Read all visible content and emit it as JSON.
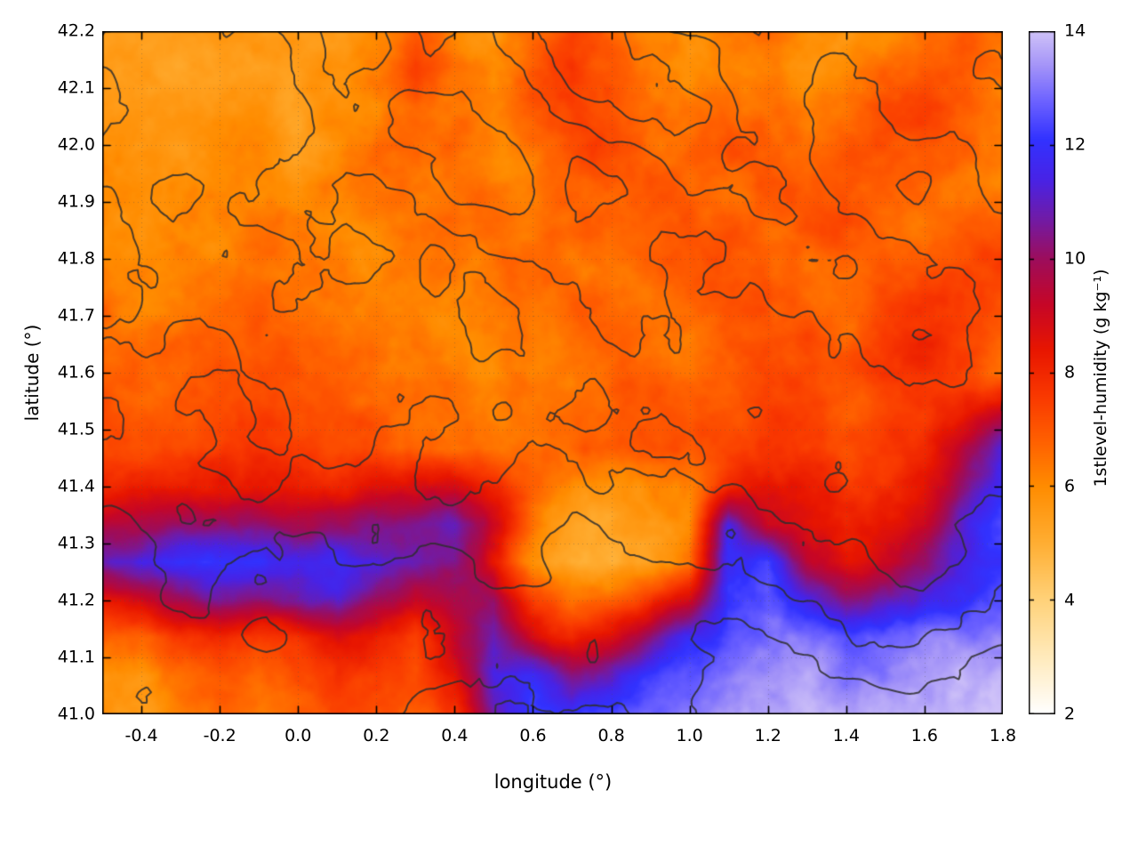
{
  "chart_data": {
    "type": "heatmap",
    "title": "",
    "xlabel": "longitude (°)",
    "ylabel": "latitude (°)",
    "colorbar_label": "1stlevel-humidity (g kg⁻¹)",
    "xlim": [
      -0.5,
      1.8
    ],
    "ylim": [
      41.0,
      42.2
    ],
    "clim": [
      2,
      14
    ],
    "grid": true,
    "xtick_values": [
      -0.4,
      -0.2,
      0.0,
      0.2,
      0.4,
      0.6,
      0.8,
      1.0,
      1.2,
      1.4,
      1.6,
      1.8
    ],
    "xtick_labels": [
      "-0.4",
      "-0.2",
      "0.0",
      "0.2",
      "0.4",
      "0.6",
      "0.8",
      "1.0",
      "1.2",
      "1.4",
      "1.6",
      "1.8"
    ],
    "ytick_values": [
      41.0,
      41.1,
      41.2,
      41.3,
      41.4,
      41.5,
      41.6,
      41.7,
      41.8,
      41.9,
      42.0,
      42.1,
      42.2
    ],
    "ytick_labels": [
      "41.0",
      "41.1",
      "41.2",
      "41.3",
      "41.4",
      "41.5",
      "41.6",
      "41.7",
      "41.8",
      "41.9",
      "42.0",
      "42.1",
      "42.2"
    ],
    "cbtick_values": [
      2,
      4,
      6,
      8,
      10,
      12,
      14
    ],
    "cbtick_labels": [
      "2",
      "4",
      "6",
      "8",
      "10",
      "12",
      "14"
    ],
    "colormap": [
      {
        "v": 2.0,
        "c": "#ffffff"
      },
      {
        "v": 3.0,
        "c": "#ffeabc"
      },
      {
        "v": 4.0,
        "c": "#ffd27a"
      },
      {
        "v": 5.0,
        "c": "#ffae33"
      },
      {
        "v": 6.0,
        "c": "#ff8c00"
      },
      {
        "v": 6.8,
        "c": "#ff6000"
      },
      {
        "v": 7.6,
        "c": "#f93800"
      },
      {
        "v": 8.4,
        "c": "#e81600"
      },
      {
        "v": 9.2,
        "c": "#c60627"
      },
      {
        "v": 10.0,
        "c": "#9d0d5c"
      },
      {
        "v": 10.7,
        "c": "#711ba6"
      },
      {
        "v": 11.4,
        "c": "#4823e6"
      },
      {
        "v": 12.1,
        "c": "#3232ff"
      },
      {
        "v": 12.8,
        "c": "#6f64ff"
      },
      {
        "v": 13.4,
        "c": "#a494f8"
      },
      {
        "v": 14.0,
        "c": "#cfc2f8"
      }
    ],
    "humidity_field": {
      "units": "g kg⁻¹",
      "lon": [
        -0.5,
        -0.4,
        -0.3,
        -0.2,
        -0.1,
        0.0,
        0.1,
        0.2,
        0.3,
        0.4,
        0.5,
        0.6,
        0.7,
        0.8,
        0.9,
        1.0,
        1.1,
        1.2,
        1.3,
        1.4,
        1.5,
        1.6,
        1.7,
        1.8
      ],
      "lat_top_to_bottom": [
        42.2,
        42.133,
        42.067,
        42.0,
        41.933,
        41.867,
        41.8,
        41.733,
        41.667,
        41.6,
        41.533,
        41.467,
        41.4,
        41.333,
        41.267,
        41.2,
        41.133,
        41.067,
        41.0
      ],
      "values": [
        [
          5.6,
          5.4,
          5.3,
          5.5,
          5.4,
          5.6,
          5.8,
          6.2,
          7.0,
          6.0,
          5.6,
          6.6,
          7.2,
          6.6,
          6.0,
          5.8,
          6.2,
          6.6,
          6.0,
          5.6,
          5.8,
          6.4,
          6.8,
          6.4
        ],
        [
          5.5,
          5.4,
          5.5,
          5.6,
          5.5,
          5.7,
          5.6,
          6.0,
          7.4,
          6.2,
          5.8,
          6.8,
          7.6,
          7.0,
          6.4,
          6.0,
          6.4,
          6.2,
          5.8,
          6.0,
          6.6,
          7.0,
          7.2,
          6.6
        ],
        [
          5.6,
          5.5,
          5.6,
          5.8,
          5.6,
          5.5,
          5.8,
          6.2,
          6.8,
          6.4,
          6.0,
          7.0,
          7.6,
          7.2,
          6.6,
          6.4,
          6.8,
          6.4,
          6.2,
          6.4,
          7.0,
          7.4,
          7.0,
          6.2
        ],
        [
          5.8,
          5.6,
          5.7,
          5.9,
          5.8,
          5.6,
          6.0,
          6.4,
          6.6,
          6.8,
          6.2,
          6.6,
          7.2,
          7.4,
          6.8,
          6.6,
          7.0,
          6.8,
          6.6,
          6.8,
          7.2,
          7.0,
          6.6,
          6.0
        ],
        [
          5.9,
          5.8,
          5.8,
          6.0,
          6.2,
          5.9,
          6.1,
          6.3,
          6.5,
          6.6,
          6.4,
          6.2,
          6.8,
          7.0,
          7.2,
          6.8,
          6.6,
          7.0,
          6.8,
          7.0,
          6.8,
          6.6,
          6.4,
          6.2
        ],
        [
          6.0,
          5.9,
          6.0,
          6.2,
          6.4,
          6.2,
          6.0,
          6.2,
          6.4,
          6.6,
          6.8,
          6.4,
          6.6,
          6.8,
          7.0,
          7.2,
          6.8,
          6.6,
          7.0,
          7.2,
          6.6,
          6.4,
          6.6,
          7.0
        ],
        [
          6.2,
          6.0,
          6.1,
          6.3,
          6.6,
          6.4,
          6.2,
          6.0,
          6.2,
          6.4,
          6.6,
          6.8,
          6.4,
          6.6,
          6.8,
          7.0,
          7.2,
          6.8,
          6.6,
          6.8,
          7.0,
          6.8,
          7.2,
          7.8
        ],
        [
          6.4,
          6.2,
          6.3,
          6.5,
          6.8,
          6.6,
          6.4,
          6.2,
          6.0,
          6.2,
          6.4,
          6.6,
          6.8,
          6.6,
          6.4,
          6.8,
          7.0,
          7.2,
          6.8,
          6.6,
          7.2,
          7.6,
          7.8,
          7.2
        ],
        [
          6.6,
          6.4,
          6.5,
          6.7,
          7.0,
          6.8,
          6.6,
          6.4,
          6.2,
          6.0,
          6.2,
          6.4,
          6.6,
          6.8,
          6.6,
          6.4,
          6.8,
          7.0,
          7.2,
          6.8,
          7.4,
          7.8,
          7.4,
          6.8
        ],
        [
          6.8,
          6.6,
          6.7,
          7.0,
          7.2,
          7.0,
          6.8,
          6.6,
          6.4,
          6.2,
          6.0,
          6.2,
          6.4,
          6.6,
          6.8,
          6.6,
          6.8,
          7.2,
          7.0,
          7.2,
          7.6,
          7.8,
          7.2,
          6.6
        ],
        [
          7.0,
          6.8,
          7.0,
          7.2,
          7.4,
          7.2,
          7.0,
          6.8,
          6.6,
          6.4,
          6.2,
          6.4,
          6.6,
          6.8,
          7.0,
          6.8,
          7.0,
          7.4,
          7.2,
          7.0,
          7.4,
          7.6,
          8.2,
          9.2
        ],
        [
          7.2,
          7.0,
          7.2,
          7.4,
          7.6,
          7.4,
          7.2,
          7.0,
          6.8,
          6.6,
          6.4,
          6.6,
          6.8,
          7.0,
          7.2,
          7.0,
          7.2,
          7.6,
          7.4,
          7.2,
          7.6,
          8.0,
          9.6,
          11.2
        ],
        [
          8.0,
          8.2,
          8.0,
          8.2,
          8.4,
          8.2,
          8.0,
          8.4,
          8.6,
          8.8,
          8.0,
          6.8,
          6.0,
          5.8,
          6.0,
          6.4,
          8.0,
          8.6,
          8.2,
          7.8,
          8.0,
          8.4,
          10.0,
          12.0
        ],
        [
          9.5,
          9.8,
          10.0,
          10.2,
          10.0,
          9.8,
          10.0,
          10.2,
          10.5,
          10.8,
          9.0,
          6.5,
          5.5,
          5.2,
          5.5,
          6.0,
          11.5,
          9.0,
          8.5,
          8.0,
          8.5,
          9.0,
          11.0,
          12.4
        ],
        [
          11.0,
          11.5,
          12.0,
          12.0,
          11.8,
          11.5,
          11.8,
          11.5,
          11.0,
          10.5,
          8.5,
          6.0,
          5.2,
          5.0,
          5.4,
          6.5,
          12.0,
          12.2,
          9.5,
          8.5,
          9.0,
          10.0,
          11.5,
          12.0
        ],
        [
          8.5,
          9.0,
          10.0,
          10.5,
          10.0,
          10.5,
          11.0,
          10.0,
          9.0,
          9.5,
          10.0,
          7.5,
          6.5,
          6.8,
          7.5,
          9.0,
          12.2,
          12.5,
          11.5,
          10.5,
          11.0,
          11.5,
          12.0,
          12.5
        ],
        [
          7.0,
          6.5,
          7.5,
          8.0,
          7.5,
          8.0,
          8.5,
          8.0,
          7.5,
          9.5,
          11.0,
          9.0,
          8.0,
          8.5,
          10.0,
          12.0,
          12.5,
          12.8,
          13.0,
          12.5,
          12.8,
          13.0,
          13.2,
          13.0
        ],
        [
          6.0,
          5.8,
          6.5,
          7.0,
          6.8,
          7.2,
          7.8,
          7.5,
          7.0,
          8.5,
          11.5,
          12.0,
          10.5,
          11.0,
          12.0,
          12.5,
          13.0,
          13.2,
          13.4,
          13.2,
          13.4,
          13.5,
          13.6,
          13.5
        ],
        [
          5.8,
          5.6,
          6.2,
          6.8,
          6.5,
          7.0,
          7.5,
          7.2,
          6.8,
          7.5,
          11.0,
          12.5,
          12.0,
          12.5,
          12.8,
          13.0,
          13.4,
          13.6,
          13.8,
          13.6,
          13.8,
          13.9,
          14.0,
          14.0
        ]
      ]
    },
    "contour_overlay": {
      "description": "terrain elevation contour lines (unlabeled)",
      "color": "#2e2e2e",
      "levels": [
        1.0,
        1.8,
        2.6,
        3.4,
        4.2,
        5.0
      ],
      "elevation": [
        [
          3.5,
          2.8,
          3.2,
          4.2,
          3.0,
          4.5,
          5.2,
          4.0,
          3.2,
          4.4,
          3.6,
          3.0
        ],
        [
          2.6,
          3.4,
          2.5,
          3.8,
          4.6,
          3.4,
          4.8,
          5.4,
          3.8,
          3.0,
          4.2,
          3.4
        ],
        [
          3.0,
          2.4,
          3.6,
          3.0,
          3.8,
          4.4,
          3.2,
          4.2,
          4.6,
          3.4,
          2.8,
          3.8
        ],
        [
          2.2,
          3.2,
          2.8,
          3.4,
          2.6,
          3.6,
          4.0,
          3.0,
          3.6,
          4.2,
          3.2,
          2.6
        ],
        [
          2.8,
          2.2,
          3.0,
          2.4,
          3.2,
          2.8,
          3.4,
          3.8,
          2.8,
          3.2,
          3.8,
          3.0
        ],
        [
          2.0,
          2.6,
          2.2,
          3.0,
          2.4,
          3.2,
          2.6,
          3.0,
          3.4,
          2.6,
          3.0,
          3.4
        ],
        [
          2.4,
          1.8,
          2.6,
          2.0,
          2.8,
          2.2,
          3.0,
          2.4,
          2.8,
          3.2,
          2.4,
          2.8
        ],
        [
          1.6,
          2.2,
          1.4,
          2.4,
          1.8,
          2.6,
          1.6,
          2.2,
          1.8,
          2.0,
          2.6,
          1.8
        ],
        [
          2.0,
          1.4,
          1.8,
          1.2,
          2.0,
          1.0,
          1.8,
          1.2,
          0.8,
          1.2,
          1.6,
          1.0
        ],
        [
          1.2,
          1.8,
          1.0,
          1.6,
          0.8,
          1.4,
          0.6,
          1.4,
          0.6,
          0.4,
          0.8,
          0.5
        ]
      ]
    }
  }
}
